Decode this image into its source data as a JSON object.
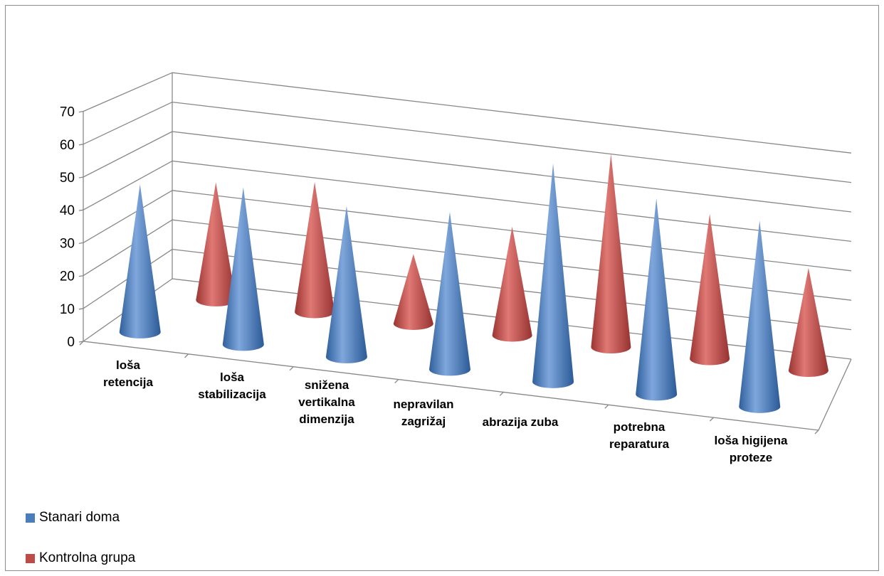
{
  "chart_data": {
    "type": "bar",
    "style": "3d-cone",
    "categories": [
      [
        "loša",
        "retencija"
      ],
      [
        "loša",
        "stabilizacija"
      ],
      [
        "snižena",
        "vertikalna",
        "dimenzija"
      ],
      [
        "nepravilan",
        "zagrižaj"
      ],
      [
        "abrazija zuba"
      ],
      [
        "potrebna",
        "reparatura"
      ],
      [
        "loša higijena",
        "proteze"
      ]
    ],
    "series": [
      {
        "name": "Stanari doma",
        "color": "#4a7ebb",
        "values": [
          46,
          49,
          47,
          49,
          68,
          61,
          58
        ]
      },
      {
        "name": "Kontrolna grupa",
        "color": "#be4b48",
        "values": [
          39,
          43,
          23,
          36,
          64,
          48,
          34
        ]
      }
    ],
    "ylim": [
      0,
      70
    ],
    "yticks": [
      0,
      10,
      20,
      30,
      40,
      50,
      60,
      70
    ],
    "grid": true,
    "legend": "bottom-left"
  }
}
